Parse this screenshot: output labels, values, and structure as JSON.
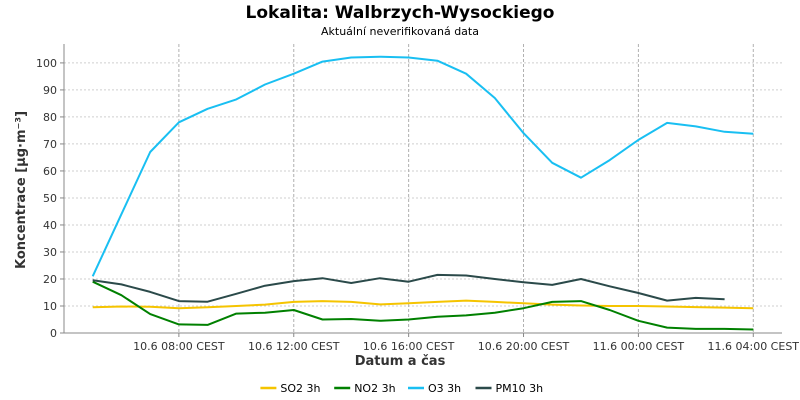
{
  "chart_data": {
    "type": "line",
    "title": "Lokalita: Walbrzych-Wysockiego",
    "subtitle": "Aktuální neverifikovaná data",
    "xlabel": "Datum a čas",
    "ylabel": "Koncentrace [µg·m⁻³]",
    "ylim": [
      0,
      107
    ],
    "yticks": [
      0,
      10,
      20,
      30,
      40,
      50,
      60,
      70,
      80,
      90,
      100
    ],
    "xlim": [
      4,
      29
    ],
    "xticks": [
      {
        "x": 8,
        "label": "10.6 08:00 CEST"
      },
      {
        "x": 12,
        "label": "10.6 12:00 CEST"
      },
      {
        "x": 16,
        "label": "10.6 16:00 CEST"
      },
      {
        "x": 20,
        "label": "10.6 20:00 CEST"
      },
      {
        "x": 24,
        "label": "11.6 00:00 CEST"
      },
      {
        "x": 28,
        "label": "11.6 04:00 CEST"
      }
    ],
    "grid": true,
    "legend_position": "bottom",
    "series": [
      {
        "name": "SO2 3h",
        "color": "#f5c400",
        "x": [
          5,
          6,
          7,
          8,
          9,
          10,
          11,
          12,
          13,
          14,
          15,
          16,
          17,
          18,
          19,
          20,
          21,
          22,
          23,
          24,
          25,
          26,
          27,
          28
        ],
        "values": [
          9.5,
          9.8,
          9.7,
          9.2,
          9.5,
          10.0,
          10.5,
          11.5,
          11.8,
          11.5,
          10.6,
          11.0,
          11.5,
          12.0,
          11.5,
          11.0,
          10.5,
          10.2,
          10.0,
          10.0,
          9.8,
          9.6,
          9.4,
          9.2
        ]
      },
      {
        "name": "NO2 3h",
        "color": "#008000",
        "x": [
          5,
          6,
          7,
          8,
          9,
          10,
          11,
          12,
          13,
          14,
          15,
          16,
          17,
          18,
          19,
          20,
          21,
          22,
          23,
          24,
          25,
          26,
          27,
          28
        ],
        "values": [
          19.0,
          14.0,
          7.0,
          3.2,
          3.0,
          7.2,
          7.5,
          8.5,
          5.0,
          5.2,
          4.5,
          5.0,
          6.0,
          6.5,
          7.5,
          9.2,
          11.5,
          11.8,
          8.5,
          4.5,
          2.0,
          1.5,
          1.5,
          1.3
        ]
      },
      {
        "name": "O3 3h",
        "color": "#19bff2",
        "x": [
          5,
          6,
          7,
          8,
          9,
          10,
          11,
          12,
          13,
          14,
          15,
          16,
          17,
          18,
          19,
          20,
          21,
          22,
          23,
          24,
          25,
          26,
          27,
          28
        ],
        "values": [
          21.0,
          44.0,
          67.0,
          78.0,
          83.0,
          86.5,
          92.0,
          96.0,
          100.5,
          102.0,
          102.3,
          102.0,
          100.8,
          96.0,
          87.0,
          74.0,
          63.0,
          57.5,
          64.0,
          71.5,
          77.8,
          76.5,
          74.5,
          73.8
        ]
      },
      {
        "name": "PM10 3h",
        "color": "#2b4a4a",
        "x": [
          5,
          6,
          7,
          8,
          9,
          10,
          11,
          12,
          13,
          14,
          15,
          16,
          17,
          18,
          19,
          20,
          21,
          22,
          23,
          24,
          25,
          26,
          27
        ],
        "values": [
          19.5,
          18.0,
          15.2,
          11.8,
          11.6,
          14.5,
          17.5,
          19.2,
          20.3,
          18.5,
          20.3,
          19.0,
          21.5,
          21.3,
          20.0,
          18.8,
          17.8,
          20.0,
          17.3,
          14.8,
          12.0,
          13.0,
          12.5
        ]
      }
    ]
  }
}
